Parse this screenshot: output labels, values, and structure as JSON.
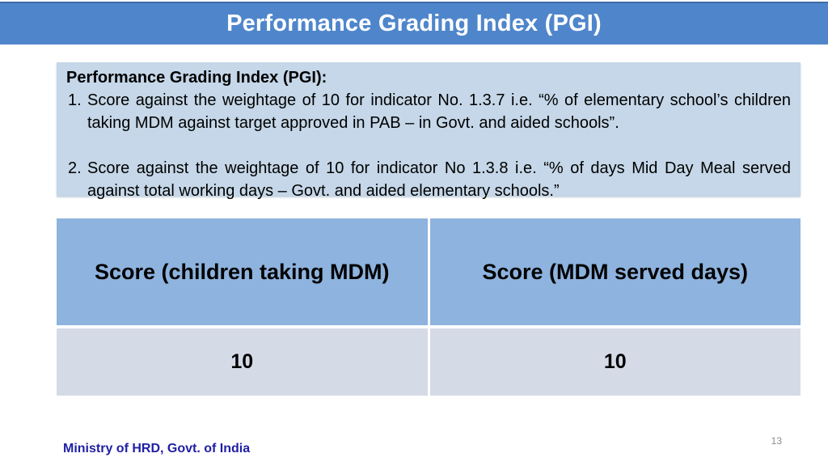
{
  "slide": {
    "title": "Performance Grading Index (PGI)",
    "footer": "Ministry of HRD, Govt. of India",
    "page_number": "13"
  },
  "info_box": {
    "heading": "Performance Grading Index (PGI):",
    "items": [
      {
        "number": "1.",
        "text": "Score against the weightage of 10 for indicator No. 1.3.7 i.e. “% of elementary school’s children taking MDM against target approved in PAB – in Govt. and aided schools”."
      },
      {
        "number": "2.",
        "text": "Score against the weightage of 10 for indicator No 1.3.8 i.e. “% of days Mid Day Meal served against total working days – Govt. and aided elementary schools.”"
      }
    ]
  },
  "table": {
    "headers": [
      "Score (children taking MDM)",
      "Score (MDM served days)"
    ],
    "rows": [
      [
        "10",
        "10"
      ]
    ]
  },
  "colors": {
    "title_bar_bg": "#4F86CB",
    "title_bar_edge": "#3E6CA6",
    "title_text": "#FFFFFF",
    "info_box_bg": "#C5D7E8",
    "table_header_bg": "#8DB3DE",
    "table_row_bg": "#D5DAE7",
    "body_text": "#000000",
    "footer_text": "#1F1FA5",
    "page_number_text": "#8C8C8C"
  }
}
